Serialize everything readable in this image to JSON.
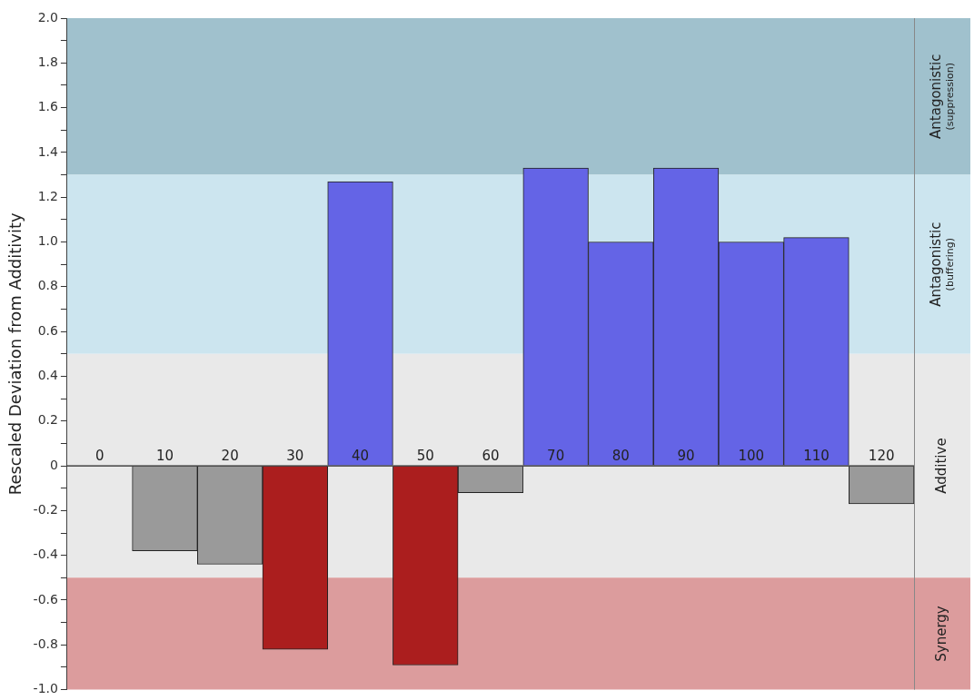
{
  "chart_data": {
    "type": "bar",
    "ylabel": "Rescaled Deviation from Additivity",
    "categories": [
      "0",
      "10",
      "20",
      "30",
      "40",
      "50",
      "60",
      "70",
      "80",
      "90",
      "100",
      "110",
      "120"
    ],
    "values": [
      0,
      -0.38,
      -0.44,
      -0.82,
      1.27,
      -0.89,
      -0.12,
      1.33,
      1.0,
      1.33,
      1.0,
      1.02,
      -0.17
    ],
    "colors": [
      "#9a9a9a",
      "#9a9a9a",
      "#9a9a9a",
      "#ab1e1e",
      "#6464e6",
      "#ab1e1e",
      "#9a9a9a",
      "#6464e6",
      "#6464e6",
      "#6464e6",
      "#6464e6",
      "#6464e6",
      "#9a9a9a"
    ],
    "ylim": [
      -1.0,
      2.0
    ],
    "yticks": [
      {
        "value": -1.0,
        "label": "-1.0"
      },
      {
        "value": -0.9,
        "label": null
      },
      {
        "value": -0.8,
        "label": "-0.8"
      },
      {
        "value": -0.7,
        "label": null
      },
      {
        "value": -0.6,
        "label": "-0.6"
      },
      {
        "value": -0.5,
        "label": null
      },
      {
        "value": -0.4,
        "label": "-0.4"
      },
      {
        "value": -0.3,
        "label": null
      },
      {
        "value": -0.2,
        "label": "-0.2"
      },
      {
        "value": -0.1,
        "label": null
      },
      0,
      {
        "value": 0.1,
        "label": null
      },
      {
        "value": 0.2,
        "label": "0.2"
      },
      {
        "value": 0.3,
        "label": null
      },
      {
        "value": 0.4,
        "label": "0.4"
      },
      {
        "value": 0.5,
        "label": null
      },
      {
        "value": 0.6,
        "label": "0.6"
      },
      {
        "value": 0.7,
        "label": null
      },
      {
        "value": 0.8,
        "label": "0.8"
      },
      {
        "value": 0.9,
        "label": null
      },
      {
        "value": 1.0,
        "label": "1.0"
      },
      {
        "value": 1.1,
        "label": null
      },
      {
        "value": 1.2,
        "label": "1.2"
      },
      {
        "value": 1.3,
        "label": null
      },
      {
        "value": 1.4,
        "label": "1.4"
      },
      {
        "value": 1.5,
        "label": null
      },
      {
        "value": 1.6,
        "label": "1.6"
      },
      {
        "value": 1.7,
        "label": null
      },
      {
        "value": 1.8,
        "label": "1.8"
      },
      {
        "value": 1.9,
        "label": null
      },
      {
        "value": 2.0,
        "label": "2.0"
      }
    ],
    "bands": [
      {
        "axis": "y",
        "from": 1.3,
        "to": 2.0,
        "label": "Antagonistic\n(suppression)",
        "color": "#a0c1cd"
      },
      {
        "axis": "y",
        "from": 0.5,
        "to": 1.3,
        "label": "Antagonistic\n(buffering)",
        "color": "#cce5ef"
      },
      {
        "axis": "y",
        "from": -0.5,
        "to": 0.5,
        "label": "Additive",
        "color": "#e9e9e9"
      },
      {
        "axis": "y",
        "from": -1.0,
        "to": -0.5,
        "label": "Synergy",
        "color": "#dc9c9d"
      }
    ],
    "grid": false,
    "legend": false
  }
}
